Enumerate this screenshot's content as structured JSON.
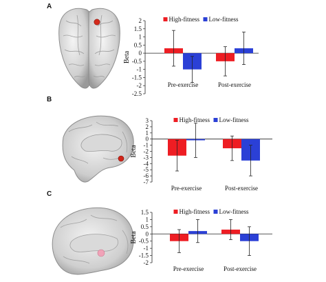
{
  "colors": {
    "high": "#ee1d23",
    "low": "#2b40d6",
    "error": "#222222",
    "roi_a": "#d42a1c",
    "roi_b": "#d02418",
    "roi_c": "#f0a3b8"
  },
  "panels": [
    {
      "letter": "A",
      "brain_view": "superior"
    },
    {
      "letter": "B",
      "brain_view": "medial"
    },
    {
      "letter": "C",
      "brain_view": "medial-ventral"
    }
  ],
  "chart_data": [
    {
      "type": "bar",
      "categories": [
        "Pre-exercise",
        "Post-exercise"
      ],
      "series": [
        {
          "name": "High-fitness",
          "values": [
            0.3,
            -0.5
          ],
          "error": [
            1.1,
            0.9
          ]
        },
        {
          "name": "Low-fitness",
          "values": [
            -1.0,
            0.3
          ],
          "error": [
            0.8,
            1.0
          ]
        }
      ],
      "ylabel": "Beta",
      "ylim": [
        -2.5,
        2
      ],
      "yticks": [
        "2",
        "1.5",
        "1",
        "0.5",
        "0",
        "-0.5",
        "-1",
        "-1.5",
        "-2",
        "-2.5"
      ],
      "yvals": [
        2,
        1.5,
        1,
        0.5,
        0,
        -0.5,
        -1,
        -1.5,
        -2,
        -2.5
      ],
      "legend": "top"
    },
    {
      "type": "bar",
      "categories": [
        "Pre-exercise",
        "Post-exercise"
      ],
      "series": [
        {
          "name": "High-fitness",
          "values": [
            -2.7,
            -1.5
          ],
          "error": [
            2.5,
            2.0
          ]
        },
        {
          "name": "Low-fitness",
          "values": [
            -0.2,
            -3.5
          ],
          "error": [
            2.8,
            2.5
          ]
        }
      ],
      "ylabel": "Beta",
      "ylim": [
        -7,
        3
      ],
      "yticks": [
        "3",
        "2",
        "1",
        "0",
        "-1",
        "-2",
        "-3",
        "-4",
        "-5",
        "-6",
        "-7"
      ],
      "yvals": [
        3,
        2,
        1,
        0,
        -1,
        -2,
        -3,
        -4,
        -5,
        -6,
        -7
      ],
      "legend": "top"
    },
    {
      "type": "bar",
      "categories": [
        "Pre-exercise",
        "Post-exercise"
      ],
      "series": [
        {
          "name": "High-fitness",
          "values": [
            -0.5,
            0.3
          ],
          "error": [
            0.8,
            0.7
          ]
        },
        {
          "name": "Low-fitness",
          "values": [
            0.2,
            -0.5
          ],
          "error": [
            0.8,
            1.0
          ]
        }
      ],
      "ylabel": "Beta",
      "ylim": [
        -2,
        1.5
      ],
      "yticks": [
        "1.5",
        "1",
        "0.5",
        "0",
        "-0.5",
        "-1",
        "-1.5",
        "-2"
      ],
      "yvals": [
        1.5,
        1,
        0.5,
        0,
        -0.5,
        -1,
        -1.5,
        -2
      ],
      "legend": "top"
    }
  ]
}
